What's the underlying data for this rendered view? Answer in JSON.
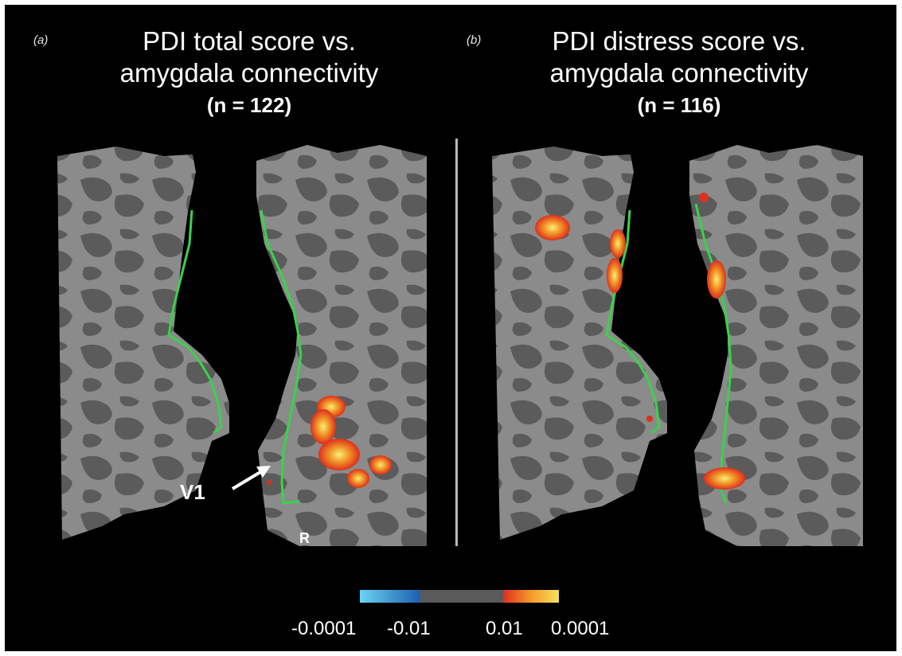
{
  "panels": [
    {
      "label": "(a)",
      "title_line1": "PDI total score vs.",
      "title_line2": "amygdala connectivity",
      "n": "(n = 122)"
    },
    {
      "label": "(b)",
      "title_line1": "PDI distress score vs.",
      "title_line2": "amygdala connectivity",
      "n": "(n = 116)"
    }
  ],
  "annotations": {
    "v1_label": "V1",
    "hemisphere_label": "R"
  },
  "colorbar": {
    "ticks": [
      "-0.0001",
      "-0.01",
      "0.01",
      "0.0001"
    ],
    "colors": {
      "neg_strong": "#6ad3f2",
      "neg_weak": "#1d5fb0",
      "neutral": "#5a5a5a",
      "pos_weak": "#e0301e",
      "pos_strong": "#f6e35a"
    }
  },
  "colors": {
    "background": "#000000",
    "surface_light": "#8b8b8b",
    "surface_dark": "#5b5b5b",
    "v1_boundary": "#39d34a"
  }
}
